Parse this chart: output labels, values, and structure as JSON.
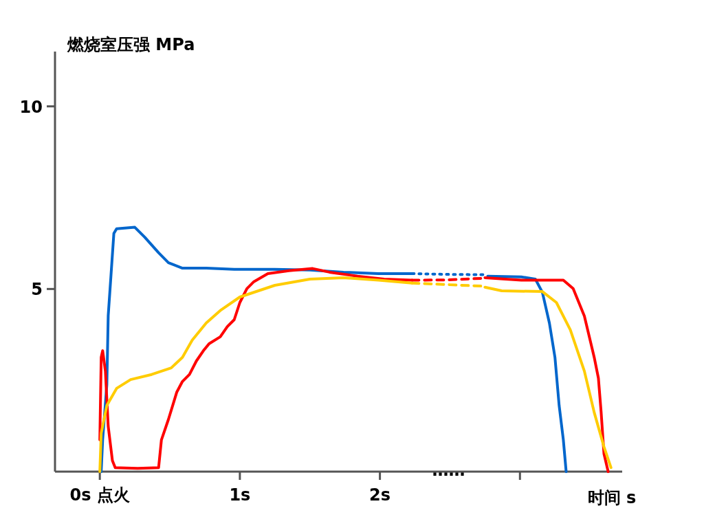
{
  "chart_data": {
    "type": "line",
    "xlabel": "时间 s",
    "ylabel": "燃烧室压强 MPa",
    "xlim": [
      -0.32,
      3.73
    ],
    "ylim": [
      0,
      11.5
    ],
    "xticks": [
      {
        "value": 0,
        "label": "0s 点火"
      },
      {
        "value": 1,
        "label": "1s"
      },
      {
        "value": 2,
        "label": "2s"
      },
      {
        "value": 3,
        "label": null
      }
    ],
    "yticks": [
      5,
      10
    ],
    "grid": false,
    "annotations": [
      "……"
    ],
    "series": [
      {
        "color": "#0066cc",
        "line_style": "solid",
        "x": [
          0.01,
          0.02,
          0.05,
          0.06,
          0.08,
          0.1,
          0.12,
          0.25,
          0.32,
          0.42,
          0.49,
          0.59,
          0.76,
          0.96,
          1.25,
          1.5,
          1.74,
          1.99,
          2.23
        ],
        "values": [
          0,
          0.87,
          2.38,
          4.27,
          5.39,
          6.52,
          6.65,
          6.69,
          6.42,
          5.99,
          5.72,
          5.57,
          5.57,
          5.54,
          5.54,
          5.52,
          5.46,
          5.42,
          5.42
        ]
      },
      {
        "color": "#0066cc",
        "line_style": "dotted",
        "x": [
          2.23,
          2.48,
          2.75
        ],
        "values": [
          5.42,
          5.4,
          5.39
        ]
      },
      {
        "color": "#0066cc",
        "line_style": "solid",
        "x": [
          2.77,
          3.01,
          3.11,
          3.16,
          3.21,
          3.25,
          3.28,
          3.31,
          3.33
        ],
        "values": [
          5.35,
          5.33,
          5.27,
          4.91,
          4.07,
          3.13,
          1.81,
          0.87,
          0
        ]
      },
      {
        "color": "#ff0000",
        "line_style": "solid",
        "x": [
          0,
          0.01,
          0.02,
          0.04,
          0.06,
          0.09,
          0.11,
          0.27,
          0.42,
          0.44,
          0.49,
          0.55,
          0.59,
          0.64,
          0.69,
          0.74,
          0.78,
          0.86,
          0.91,
          0.96,
          1.0,
          1.05,
          1.1,
          1.2,
          1.35,
          1.52,
          1.64,
          1.84,
          2.03,
          2.23
        ],
        "values": [
          0.87,
          3.13,
          3.31,
          2.75,
          1.24,
          0.3,
          0.11,
          0.09,
          0.11,
          0.87,
          1.43,
          2.18,
          2.47,
          2.66,
          3.03,
          3.31,
          3.5,
          3.69,
          3.97,
          4.16,
          4.63,
          5.01,
          5.2,
          5.42,
          5.5,
          5.56,
          5.46,
          5.35,
          5.27,
          5.24
        ]
      },
      {
        "color": "#ff0000",
        "line_style": "dashed",
        "x": [
          2.23,
          2.48,
          2.72
        ],
        "values": [
          5.24,
          5.25,
          5.29
        ]
      },
      {
        "color": "#ff0000",
        "line_style": "solid",
        "x": [
          2.75,
          3.01,
          3.31,
          3.38,
          3.46,
          3.53,
          3.56,
          3.58,
          3.6,
          3.63
        ],
        "values": [
          5.31,
          5.24,
          5.24,
          5.01,
          4.26,
          3.13,
          2.56,
          1.62,
          0.49,
          0
        ]
      },
      {
        "color": "#ffcc00",
        "line_style": "solid",
        "x": [
          0,
          0.01,
          0.05,
          0.12,
          0.22,
          0.37,
          0.51,
          0.59,
          0.66,
          0.76,
          0.86,
          1.0,
          1.25,
          1.5,
          1.74,
          1.99,
          2.23
        ],
        "values": [
          0,
          1.05,
          1.81,
          2.28,
          2.52,
          2.66,
          2.84,
          3.13,
          3.6,
          4.07,
          4.41,
          4.78,
          5.1,
          5.27,
          5.31,
          5.24,
          5.16
        ]
      },
      {
        "color": "#ffcc00",
        "line_style": "dashed",
        "x": [
          2.23,
          2.48,
          2.72
        ],
        "values": [
          5.16,
          5.12,
          5.08
        ]
      },
      {
        "color": "#ffcc00",
        "line_style": "solid",
        "x": [
          2.75,
          2.87,
          3.16,
          3.26,
          3.36,
          3.46,
          3.53,
          3.6,
          3.65
        ],
        "values": [
          5.05,
          4.95,
          4.93,
          4.63,
          3.88,
          2.75,
          1.62,
          0.68,
          0.11
        ]
      }
    ]
  }
}
